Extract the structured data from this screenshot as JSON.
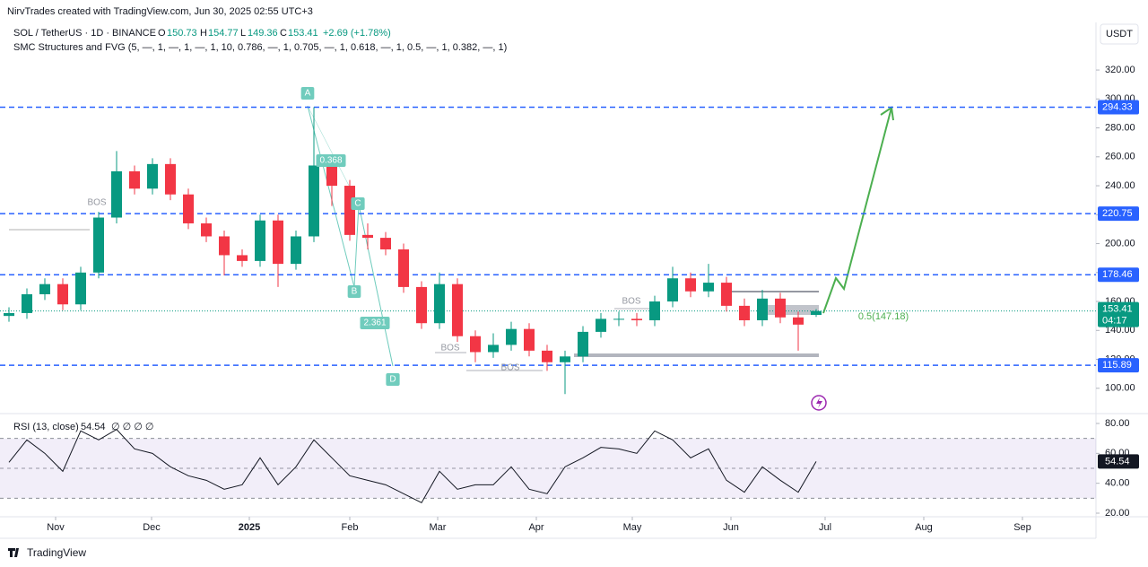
{
  "header": {
    "credit": "NirvTrades created with TradingView.com, Jun 30, 2025 02:55 UTC+3",
    "symbol": "SOL / TetherUS · 1D · BINANCE",
    "change": "+2.69 (+1.78%)",
    "indicator": "SMC Structures and FVG (5, —, 1, —, 1, —, 1, 10, 0.786, —, 1, 0.705, —, 1, 0.618, —, 1, 0.5, —, 1, 0.382, —, 1)",
    "currency": "USDT",
    "brand": "TradingView"
  },
  "chart_data": [
    {
      "type": "candlestick",
      "open": [
        150,
        152,
        165,
        172,
        158,
        180,
        218,
        250,
        238,
        255,
        234,
        214,
        205,
        192,
        188,
        216,
        186,
        205,
        254,
        240,
        206,
        204,
        196,
        170,
        145,
        172,
        136,
        125,
        130,
        141,
        126,
        118,
        122,
        139,
        148,
        148,
        147,
        160,
        176,
        167,
        173,
        157,
        147,
        162,
        149,
        150.73
      ],
      "high": [
        156,
        169,
        176,
        176,
        184,
        222,
        264,
        254,
        259,
        259,
        238,
        218,
        209,
        196,
        220,
        220,
        209,
        294.33,
        258,
        244,
        214,
        208,
        200,
        174,
        180,
        176,
        140,
        138,
        146,
        145,
        130,
        126,
        143,
        152,
        153,
        152,
        164,
        184,
        180,
        186,
        177,
        162,
        168,
        166,
        153,
        154.77
      ],
      "low": [
        146,
        148,
        161,
        154,
        154,
        176,
        214,
        234,
        234,
        230,
        210,
        201,
        178,
        184,
        184,
        170,
        182,
        201,
        226,
        202,
        196,
        192,
        166,
        141,
        141,
        132,
        118,
        121,
        126,
        122,
        112,
        96,
        118,
        135,
        143,
        143,
        143,
        156,
        163,
        163,
        153,
        143,
        143,
        145,
        126,
        149.36
      ],
      "close": [
        152,
        165,
        172,
        158,
        180,
        218,
        250,
        238,
        255,
        234,
        214,
        205,
        192,
        188,
        216,
        186,
        205,
        254,
        240,
        206,
        204,
        196,
        170,
        145,
        172,
        136,
        125,
        130,
        141,
        126,
        118,
        122,
        139,
        148,
        148,
        147,
        160,
        176,
        167,
        173,
        157,
        147,
        162,
        149,
        144,
        153.41
      ],
      "up_color": "#089981",
      "down_color": "#f23645",
      "xlim": [
        -0.5,
        60.6
      ],
      "xticks": [
        {
          "value": 2.6,
          "label": "Nov"
        },
        {
          "value": 7.95,
          "label": "Dec"
        },
        {
          "value": 13.4,
          "label": "2025"
        },
        {
          "value": 19,
          "label": "Feb"
        },
        {
          "value": 23.9,
          "label": "Mar"
        },
        {
          "value": 29.4,
          "label": "Apr"
        },
        {
          "value": 34.75,
          "label": "May"
        },
        {
          "value": 40.25,
          "label": "Jun"
        },
        {
          "value": 45.5,
          "label": "Jul"
        },
        {
          "value": 51,
          "label": "Aug"
        },
        {
          "value": 56.5,
          "label": "Sep"
        }
      ],
      "ylim": [
        82.5,
        352.9
      ],
      "yticks": [
        {
          "value": 100,
          "label": "100.00"
        },
        {
          "value": 120,
          "label": "120.00"
        },
        {
          "value": 140,
          "label": "140.00"
        },
        {
          "value": 160,
          "label": "160.00"
        },
        {
          "value": 180,
          "label": "180.00"
        },
        {
          "value": 200,
          "label": "200.00"
        },
        {
          "value": 220,
          "label": "220.00"
        },
        {
          "value": 240,
          "label": "240.00"
        },
        {
          "value": 260,
          "label": "260.00"
        },
        {
          "value": 280,
          "label": "280.00"
        },
        {
          "value": 300,
          "label": "300.00"
        },
        {
          "value": 320,
          "label": "320.00"
        }
      ],
      "levels": [
        294.33,
        220.75,
        178.46,
        115.89
      ],
      "level_color": "#2962ff",
      "countdown": "04:17",
      "annotations": [
        "A",
        "B",
        "C",
        "D",
        "0.368",
        "2.361",
        "BOS",
        "BOS",
        "BOS",
        "BOS",
        "0.5(147.18)"
      ]
    },
    {
      "type": "line",
      "title": "RSI (13, close)",
      "placeholders": "∅ ∅ ∅ ∅",
      "values": [
        54,
        69,
        60,
        48,
        75,
        69,
        76,
        63,
        60,
        51,
        45,
        42,
        36,
        39,
        57,
        39,
        51,
        69,
        57,
        45,
        42,
        39,
        33,
        27,
        48,
        36,
        39,
        39,
        51,
        36,
        33,
        51,
        57,
        64,
        63,
        60,
        75,
        69,
        57,
        63,
        42,
        34,
        51,
        42,
        34,
        54.54
      ],
      "color": "#131722",
      "band": [
        30,
        70
      ],
      "midline": 50,
      "band_color": "#7e57c2",
      "ylim": [
        17.6,
        86
      ],
      "yticks": [
        {
          "value": 20,
          "label": "20.00"
        },
        {
          "value": 40,
          "label": "40.00"
        },
        {
          "value": 60,
          "label": "60.00"
        },
        {
          "value": 80,
          "label": "80.00"
        }
      ]
    }
  ]
}
